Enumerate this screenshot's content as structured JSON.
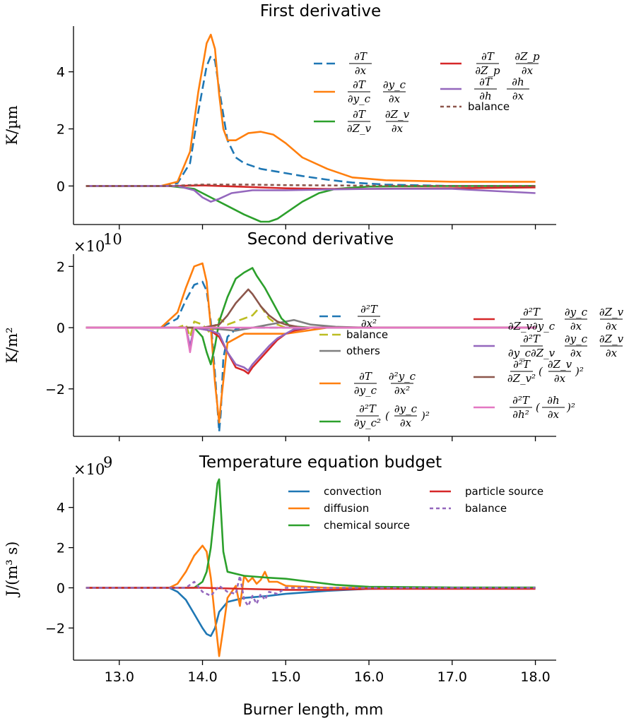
{
  "figure": {
    "xlabel": "Burner length, mm"
  },
  "chart_data": [
    {
      "type": "line",
      "title": "First derivative",
      "ylabel": "K/µm",
      "xlim": [
        12.45,
        18.25
      ],
      "ylim": [
        -1.35,
        5.6
      ],
      "yticks": [
        0,
        2,
        4
      ],
      "ytick_labels": [
        "0",
        "2",
        "4"
      ],
      "xticks": [
        13,
        14,
        15,
        16,
        17,
        18
      ],
      "show_xtick_labels": false,
      "legend_position": "upper-right",
      "legend_columns": 2,
      "series": [
        {
          "name": "∂T/∂x",
          "color": "#1f77b4",
          "dash": "dashed",
          "x": [
            12.6,
            13.5,
            13.7,
            13.85,
            13.95,
            14.05,
            14.1,
            14.15,
            14.2,
            14.25,
            14.3,
            14.4,
            14.5,
            14.7,
            14.9,
            15.2,
            15.5,
            15.8,
            16.2,
            17,
            18
          ],
          "y": [
            0,
            0,
            0.1,
            0.8,
            2.6,
            4.2,
            4.55,
            4.4,
            3.4,
            2.5,
            1.6,
            1.0,
            0.8,
            0.6,
            0.5,
            0.35,
            0.22,
            0.12,
            0.05,
            0,
            0
          ]
        },
        {
          "name": "∂T/∂y_c · ∂y_c/∂x",
          "color": "#ff7f0e",
          "dash": "solid",
          "x": [
            12.6,
            13.5,
            13.7,
            13.85,
            13.95,
            14.05,
            14.1,
            14.15,
            14.2,
            14.25,
            14.3,
            14.4,
            14.55,
            14.7,
            14.85,
            15.0,
            15.2,
            15.5,
            15.8,
            16.2,
            17,
            18
          ],
          "y": [
            0,
            0,
            0.15,
            1.2,
            3.3,
            5.0,
            5.3,
            4.8,
            3.2,
            2.0,
            1.6,
            1.6,
            1.85,
            1.9,
            1.8,
            1.5,
            1.0,
            0.6,
            0.3,
            0.2,
            0.15,
            0.15
          ]
        },
        {
          "name": "∂T/∂Z_v · ∂Z_v/∂x",
          "color": "#2ca02c",
          "dash": "solid",
          "x": [
            12.6,
            13.6,
            13.9,
            14.1,
            14.3,
            14.5,
            14.7,
            14.8,
            14.9,
            15.0,
            15.2,
            15.4,
            15.6,
            16,
            17,
            18
          ],
          "y": [
            0,
            0,
            -0.1,
            -0.4,
            -0.7,
            -1.0,
            -1.25,
            -1.25,
            -1.15,
            -0.95,
            -0.55,
            -0.25,
            -0.1,
            -0.02,
            0,
            0
          ]
        },
        {
          "name": "∂T/∂Z_p · ∂Z_p/∂x",
          "color": "#d62728",
          "dash": "solid",
          "x": [
            12.6,
            13.6,
            14.0,
            14.5,
            15.0,
            15.5,
            16.0,
            17.0,
            18.0
          ],
          "y": [
            0,
            0,
            0.02,
            -0.03,
            -0.08,
            -0.1,
            -0.1,
            -0.08,
            -0.05
          ]
        },
        {
          "name": "∂T/∂h · ∂h/∂x",
          "color": "#9467bd",
          "dash": "solid",
          "x": [
            12.6,
            13.7,
            13.9,
            14.0,
            14.1,
            14.2,
            14.35,
            14.6,
            15.0,
            15.5,
            16.0,
            17.0,
            18.0
          ],
          "y": [
            0,
            0,
            -0.15,
            -0.4,
            -0.55,
            -0.45,
            -0.25,
            -0.15,
            -0.15,
            -0.12,
            -0.1,
            -0.1,
            -0.25
          ]
        },
        {
          "name": "balance",
          "color": "#8c564b",
          "dash": "dotted",
          "x": [
            12.6,
            13.6,
            14.0,
            14.5,
            15.0,
            15.5,
            16.0,
            17.0,
            18.0
          ],
          "y": [
            0,
            0,
            0.05,
            0.05,
            0.03,
            0.02,
            0.01,
            0,
            0
          ]
        }
      ]
    },
    {
      "type": "line",
      "title": "Second derivative",
      "ylabel": "K/m²",
      "offset_text": "×10",
      "offset_exp": "10",
      "xlim": [
        12.45,
        18.25
      ],
      "ylim": [
        -3.55,
        2.4
      ],
      "yticks": [
        -2,
        0,
        2
      ],
      "ytick_labels": [
        "−2",
        "0",
        "2"
      ],
      "xticks": [
        13,
        14,
        15,
        16,
        17,
        18
      ],
      "show_xtick_labels": false,
      "legend_position": "right",
      "legend_columns": 2,
      "series": [
        {
          "name": "∂²T/∂x²",
          "color": "#1f77b4",
          "dash": "dashed",
          "x": [
            12.6,
            13.5,
            13.7,
            13.8,
            13.9,
            14.0,
            14.05,
            14.1,
            14.15,
            14.2,
            14.22,
            14.25,
            14.3,
            14.4,
            14.6,
            14.8,
            15,
            16,
            18
          ],
          "y": [
            0,
            0,
            0.3,
            0.9,
            1.4,
            1.5,
            1.2,
            0.2,
            -1.5,
            -3.4,
            -2.8,
            -1.0,
            -0.3,
            -0.05,
            0,
            0,
            0,
            0,
            0
          ]
        },
        {
          "name": "balance",
          "color": "#bcbd22",
          "dash": "dashed",
          "x": [
            12.6,
            13.7,
            13.8,
            13.85,
            13.9,
            14.0,
            14.1,
            14.2,
            14.3,
            14.4,
            14.5,
            14.6,
            14.7,
            14.8,
            14.9,
            15,
            15.5,
            18
          ],
          "y": [
            0,
            0,
            0.1,
            -0.3,
            0.2,
            0.1,
            -0.2,
            0.3,
            0.1,
            0.2,
            0.3,
            0.4,
            0.7,
            0.3,
            0.1,
            0,
            0,
            0
          ]
        },
        {
          "name": "others",
          "color": "#7f7f7f",
          "dash": "solid",
          "x": [
            12.6,
            14.0,
            14.2,
            14.4,
            14.6,
            14.8,
            15.0,
            15.1,
            15.3,
            15.6,
            16,
            18
          ],
          "y": [
            0,
            0,
            -0.05,
            -0.1,
            0,
            0.1,
            0.2,
            0.25,
            0.1,
            0.03,
            0,
            0
          ]
        },
        {
          "name": "∂T/∂y_c · ∂²y_c/∂x²",
          "color": "#ff7f0e",
          "dash": "solid",
          "x": [
            12.6,
            13.5,
            13.7,
            13.8,
            13.9,
            14.0,
            14.05,
            14.1,
            14.15,
            14.2,
            14.22,
            14.3,
            14.5,
            14.8,
            15.0,
            15.5,
            16,
            18
          ],
          "y": [
            0,
            0,
            0.5,
            1.3,
            2.0,
            2.1,
            1.5,
            0.0,
            -1.8,
            -3.1,
            -2.5,
            -0.5,
            -0.2,
            -0.2,
            -0.2,
            0,
            0,
            0
          ]
        },
        {
          "name": "∂²T/∂y_c² · (∂y_c/∂x)²",
          "color": "#2ca02c",
          "dash": "solid",
          "x": [
            12.6,
            13.9,
            14.0,
            14.05,
            14.1,
            14.15,
            14.2,
            14.3,
            14.4,
            14.5,
            14.6,
            14.65,
            14.75,
            14.85,
            14.95,
            15.05,
            15.3,
            16,
            18
          ],
          "y": [
            0,
            0,
            -0.3,
            -0.8,
            -1.2,
            -0.6,
            0.2,
            1.0,
            1.6,
            1.8,
            1.95,
            1.7,
            1.3,
            0.8,
            0.3,
            0.05,
            0,
            0,
            0
          ]
        },
        {
          "name": "∂²T/∂Z_v∂y_c · ∂y_c/∂x · ∂Z_v/∂x",
          "color": "#d62728",
          "dash": "solid",
          "x": [
            12.6,
            13.9,
            14.1,
            14.2,
            14.3,
            14.4,
            14.5,
            14.55,
            14.6,
            14.7,
            14.8,
            14.9,
            15.0,
            15.1,
            15.3,
            16,
            18
          ],
          "y": [
            0,
            0,
            -0.1,
            -0.3,
            -0.8,
            -1.3,
            -1.4,
            -1.5,
            -1.3,
            -1.0,
            -0.7,
            -0.4,
            -0.2,
            -0.1,
            0,
            0,
            0
          ]
        },
        {
          "name": "∂²T/∂y_c∂Z_v · ∂y_c/∂x · ∂Z_v/∂x",
          "color": "#9467bd",
          "dash": "solid",
          "x": [
            12.6,
            13.8,
            13.85,
            13.9,
            14.1,
            14.2,
            14.3,
            14.4,
            14.5,
            14.55,
            14.6,
            14.7,
            14.8,
            14.9,
            15.0,
            15.1,
            15.3,
            16,
            18
          ],
          "y": [
            0,
            0,
            -0.6,
            0,
            -0.1,
            -0.2,
            -0.8,
            -1.2,
            -1.3,
            -1.4,
            -1.2,
            -0.9,
            -0.6,
            -0.35,
            -0.2,
            -0.05,
            0,
            0,
            0
          ]
        },
        {
          "name": "∂²T/∂Z_v² · (∂Z_v/∂x)²",
          "color": "#8c564b",
          "dash": "solid",
          "x": [
            12.6,
            14.0,
            14.2,
            14.3,
            14.4,
            14.5,
            14.55,
            14.6,
            14.7,
            14.8,
            14.9,
            15.0,
            15.2,
            16,
            18
          ],
          "y": [
            0,
            0,
            0.1,
            0.4,
            0.8,
            1.1,
            1.25,
            1.1,
            0.7,
            0.4,
            0.2,
            0.1,
            0,
            0,
            0
          ]
        },
        {
          "name": "∂²T/∂h² · (∂h/∂x)²",
          "color": "#e377c2",
          "dash": "solid",
          "x": [
            12.6,
            13.8,
            13.85,
            13.9,
            14.0,
            14.5,
            15,
            18
          ],
          "y": [
            0,
            0,
            -0.8,
            0,
            0,
            0,
            0,
            0
          ]
        }
      ]
    },
    {
      "type": "line",
      "title": "Temperature equation budget",
      "ylabel": "J/(m³ s)",
      "offset_text": "×10",
      "offset_exp": "9",
      "xlim": [
        12.45,
        18.25
      ],
      "ylim": [
        -3.6,
        5.5
      ],
      "yticks": [
        -2,
        0,
        2,
        4
      ],
      "ytick_labels": [
        "−2",
        "0",
        "2",
        "4"
      ],
      "xticks": [
        13,
        14,
        15,
        16,
        17,
        18
      ],
      "xtick_labels": [
        "13.0",
        "14.0",
        "15.0",
        "16.0",
        "17.0",
        "18.0"
      ],
      "show_xtick_labels": true,
      "legend_position": "upper-right",
      "legend_columns": 2,
      "series": [
        {
          "name": "convection",
          "color": "#1f77b4",
          "dash": "solid",
          "x": [
            12.6,
            13.6,
            13.7,
            13.8,
            13.9,
            14.0,
            14.05,
            14.1,
            14.15,
            14.2,
            14.3,
            14.5,
            14.8,
            15.0,
            15.5,
            16.0,
            17.0,
            18.0
          ],
          "y": [
            0,
            0,
            -0.2,
            -0.6,
            -1.3,
            -2.0,
            -2.3,
            -2.4,
            -2.0,
            -1.2,
            -0.7,
            -0.5,
            -0.4,
            -0.3,
            -0.15,
            -0.05,
            0,
            0
          ]
        },
        {
          "name": "diffusion",
          "color": "#ff7f0e",
          "dash": "solid",
          "x": [
            12.6,
            13.6,
            13.7,
            13.8,
            13.9,
            14.0,
            14.05,
            14.1,
            14.15,
            14.2,
            14.25,
            14.3,
            14.4,
            14.45,
            14.5,
            14.55,
            14.6,
            14.65,
            14.7,
            14.75,
            14.8,
            14.9,
            15.0,
            15.5,
            16,
            18
          ],
          "y": [
            0,
            0,
            0.2,
            0.8,
            1.6,
            2.1,
            1.8,
            0.5,
            -1.5,
            -3.4,
            -2.0,
            -0.5,
            0.1,
            -0.9,
            0.6,
            0.3,
            0.5,
            0.2,
            0.4,
            0.8,
            0.3,
            0.3,
            0.1,
            0,
            0,
            0
          ]
        },
        {
          "name": "chemical source",
          "color": "#2ca02c",
          "dash": "solid",
          "x": [
            12.6,
            13.9,
            14.0,
            14.05,
            14.1,
            14.15,
            14.18,
            14.2,
            14.22,
            14.25,
            14.3,
            14.5,
            14.8,
            15.0,
            15.3,
            15.6,
            16.0,
            17.0,
            18.0
          ],
          "y": [
            0,
            0,
            0.3,
            0.8,
            2.0,
            4.0,
            5.2,
            5.4,
            4.0,
            1.8,
            0.8,
            0.6,
            0.5,
            0.45,
            0.3,
            0.15,
            0.05,
            0.02,
            0.02
          ]
        },
        {
          "name": "particle source",
          "color": "#d62728",
          "dash": "solid",
          "x": [
            12.6,
            14.0,
            14.5,
            15.0,
            15.5,
            16.0,
            17.0,
            18.0
          ],
          "y": [
            0,
            0,
            -0.05,
            -0.1,
            -0.1,
            -0.05,
            -0.05,
            -0.05
          ]
        },
        {
          "name": "balance",
          "color": "#9467bd",
          "dash": "dotted",
          "x": [
            12.6,
            13.8,
            13.9,
            14.0,
            14.1,
            14.2,
            14.3,
            14.4,
            14.45,
            14.5,
            14.55,
            14.6,
            14.65,
            14.7,
            14.75,
            14.8,
            14.9,
            15.0,
            15.2,
            16,
            18
          ],
          "y": [
            0,
            0,
            0.3,
            -0.2,
            -0.4,
            0.1,
            -0.2,
            -0.3,
            0.6,
            -0.6,
            -0.9,
            -0.4,
            -0.8,
            -0.3,
            -0.6,
            -0.2,
            -0.3,
            0,
            0,
            0,
            0
          ]
        }
      ]
    }
  ]
}
